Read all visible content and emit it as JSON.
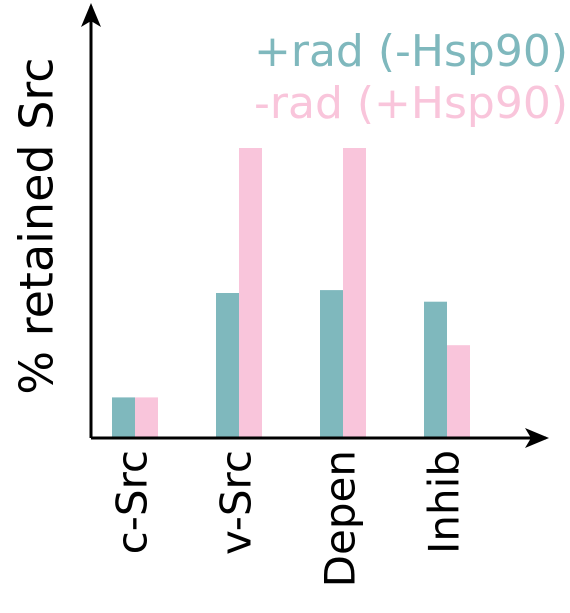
{
  "chart_data": {
    "type": "bar",
    "title": "",
    "xlabel": "",
    "ylabel": "% retained Src",
    "categories": [
      "c-Src",
      "v-Src",
      "Depen",
      "Inhib"
    ],
    "series": [
      {
        "name": "+rad (-Hsp90)",
        "color": "#7fb8bd",
        "values": [
          14,
          50,
          51,
          47
        ]
      },
      {
        "name": "-rad (+Hsp90)",
        "color": "#f9c5db",
        "values": [
          14,
          100,
          100,
          32
        ]
      }
    ],
    "ylim": [
      0,
      100
    ],
    "grid": false,
    "legend_position": "top-right",
    "axis_color": "#000000"
  }
}
